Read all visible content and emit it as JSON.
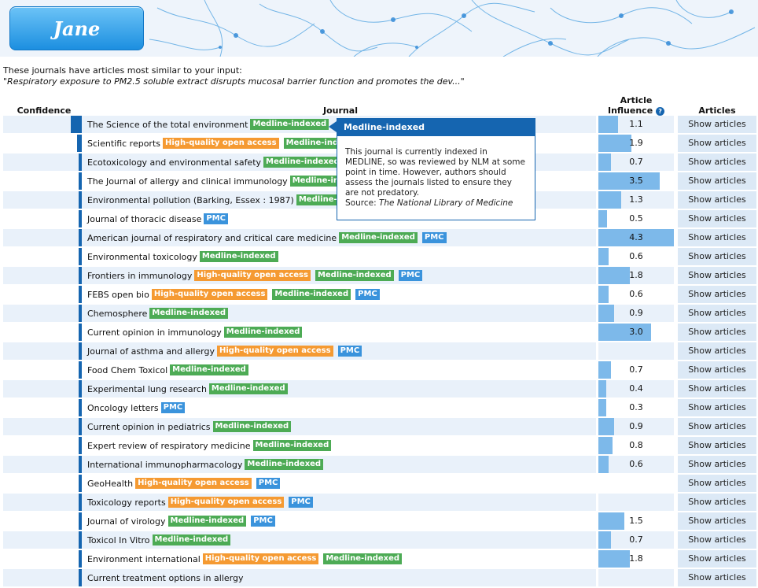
{
  "header": {
    "logo_text": "Jane"
  },
  "intro": {
    "line1": "These journals have articles most similar to your input:",
    "query": "\"Respiratory exposure to PM2.5 soluble extract disrupts mucosal barrier function and promotes the dev...\""
  },
  "columns": {
    "confidence": "Confidence",
    "journal": "Journal",
    "influence_line1": "Article",
    "influence_line2": "Influence",
    "articles": "Articles"
  },
  "badges": {
    "medline": "Medline-indexed",
    "hq": "High-quality open access",
    "pmc": "PMC"
  },
  "show_label": "Show articles",
  "influence_max": 4.3,
  "rows": [
    {
      "name": "The Science of the total environment",
      "badges": [
        "medline"
      ],
      "influence": "1.1",
      "confidence": 5
    },
    {
      "name": "Scientific reports",
      "badges": [
        "hq",
        "medline"
      ],
      "influence": "1.9",
      "confidence": 2
    },
    {
      "name": "Ecotoxicology and environmental safety",
      "badges": [
        "medline"
      ],
      "influence": "0.7",
      "confidence": 1
    },
    {
      "name": "The Journal of allergy and clinical immunology",
      "badges": [
        "medline"
      ],
      "influence": "3.5",
      "confidence": 1
    },
    {
      "name": "Environmental pollution (Barking, Essex : 1987)",
      "badges": [
        "medline"
      ],
      "influence": "1.3",
      "confidence": 1
    },
    {
      "name": "Journal of thoracic disease",
      "badges": [
        "pmc"
      ],
      "influence": "0.5",
      "confidence": 1
    },
    {
      "name": "American journal of respiratory and critical care medicine",
      "badges": [
        "medline",
        "pmc"
      ],
      "influence": "4.3",
      "confidence": 1
    },
    {
      "name": "Environmental toxicology",
      "badges": [
        "medline"
      ],
      "influence": "0.6",
      "confidence": 1
    },
    {
      "name": "Frontiers in immunology",
      "badges": [
        "hq",
        "medline",
        "pmc"
      ],
      "influence": "1.8",
      "confidence": 1
    },
    {
      "name": "FEBS open bio",
      "badges": [
        "hq",
        "medline",
        "pmc"
      ],
      "influence": "0.6",
      "confidence": 1
    },
    {
      "name": "Chemosphere",
      "badges": [
        "medline"
      ],
      "influence": "0.9",
      "confidence": 1
    },
    {
      "name": "Current opinion in immunology",
      "badges": [
        "medline"
      ],
      "influence": "3.0",
      "confidence": 1
    },
    {
      "name": "Journal of asthma and allergy",
      "badges": [
        "hq",
        "pmc"
      ],
      "influence": "",
      "confidence": 1
    },
    {
      "name": "Food Chem Toxicol",
      "badges": [
        "medline"
      ],
      "influence": "0.7",
      "confidence": 1
    },
    {
      "name": "Experimental lung research",
      "badges": [
        "medline"
      ],
      "influence": "0.4",
      "confidence": 1
    },
    {
      "name": "Oncology letters",
      "badges": [
        "pmc"
      ],
      "influence": "0.3",
      "confidence": 1
    },
    {
      "name": "Current opinion in pediatrics",
      "badges": [
        "medline"
      ],
      "influence": "0.9",
      "confidence": 1
    },
    {
      "name": "Expert review of respiratory medicine",
      "badges": [
        "medline"
      ],
      "influence": "0.8",
      "confidence": 1
    },
    {
      "name": "International immunopharmacology",
      "badges": [
        "medline"
      ],
      "influence": "0.6",
      "confidence": 1
    },
    {
      "name": "GeoHealth",
      "badges": [
        "hq",
        "pmc"
      ],
      "influence": "",
      "confidence": 1
    },
    {
      "name": "Toxicology reports",
      "badges": [
        "hq",
        "pmc"
      ],
      "influence": "",
      "confidence": 1
    },
    {
      "name": "Journal of virology",
      "badges": [
        "medline",
        "pmc"
      ],
      "influence": "1.5",
      "confidence": 1
    },
    {
      "name": "Toxicol In Vitro",
      "badges": [
        "medline"
      ],
      "influence": "0.7",
      "confidence": 1
    },
    {
      "name": "Environment international",
      "badges": [
        "hq",
        "medline"
      ],
      "influence": "1.8",
      "confidence": 1
    },
    {
      "name": "Current treatment options in allergy",
      "badges": [],
      "influence": "",
      "confidence": 1
    }
  ],
  "tooltip": {
    "title": "Medline-indexed",
    "body": "This journal is currently indexed in MEDLINE, so was reviewed by NLM at some point in time. However, authors should assess the journals listed to ensure they are not predatory.",
    "source_label": "Source:",
    "source_name": "The National Library of Medicine"
  },
  "colors": {
    "medline": "#4dab55",
    "hq": "#f59a32",
    "pmc": "#3a93dc",
    "confidence": "#1565b0",
    "influence": "#7db9ea"
  }
}
